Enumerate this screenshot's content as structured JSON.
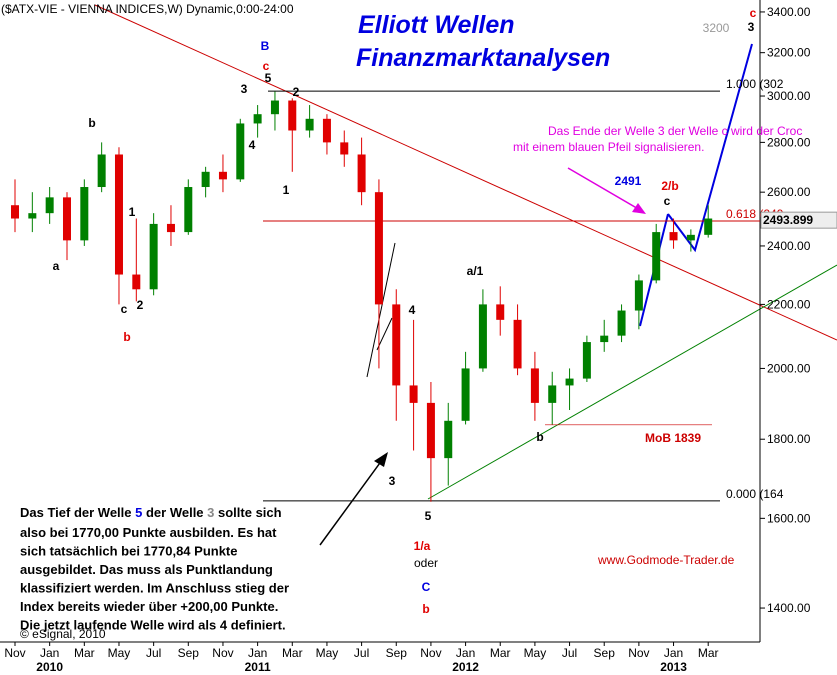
{
  "chart_data": {
    "type": "candlestick",
    "title": "($ATX-VIE - VIENNA INDICES,W) Dynamic,0:00-24:00",
    "heading": [
      "Elliott Wellen",
      "Finanzmarktanalysen"
    ],
    "log_scale": true,
    "up_color": "#008000",
    "down_color": "#e00000",
    "x": [
      "2009-11",
      "2009-12",
      "2010-01",
      "2010-02",
      "2010-03",
      "2010-04",
      "2010-05",
      "2010-06",
      "2010-07",
      "2010-08",
      "2010-09",
      "2010-10",
      "2010-11",
      "2010-12",
      "2011-01",
      "2011-02",
      "2011-03",
      "2011-04",
      "2011-05",
      "2011-06",
      "2011-07",
      "2011-08",
      "2011-09",
      "2011-10",
      "2011-11",
      "2011-12",
      "2012-01",
      "2012-02",
      "2012-03",
      "2012-04",
      "2012-05",
      "2012-06",
      "2012-07",
      "2012-08",
      "2012-09",
      "2012-10",
      "2012-11",
      "2012-12",
      "2013-01",
      "2013-02",
      "2013-03"
    ],
    "open": [
      2550,
      2500,
      2520,
      2580,
      2420,
      2620,
      2750,
      2300,
      2250,
      2480,
      2450,
      2620,
      2680,
      2650,
      2880,
      2920,
      2980,
      2850,
      2900,
      2800,
      2750,
      2600,
      2200,
      1950,
      1900,
      1750,
      1850,
      2000,
      2200,
      2150,
      2000,
      1900,
      1950,
      1970,
      2080,
      2100,
      2180,
      2280,
      2450,
      2420,
      2440
    ],
    "high": [
      2650,
      2600,
      2620,
      2600,
      2650,
      2800,
      2780,
      2500,
      2520,
      2550,
      2650,
      2700,
      2750,
      2900,
      2960,
      3020,
      2990,
      2960,
      2920,
      2850,
      2820,
      2650,
      2250,
      2150,
      1960,
      1900,
      2050,
      2250,
      2260,
      2200,
      2050,
      1990,
      2000,
      2100,
      2150,
      2200,
      2300,
      2480,
      2500,
      2460,
      2550
    ],
    "low": [
      2450,
      2450,
      2480,
      2350,
      2400,
      2600,
      2200,
      2210,
      2230,
      2400,
      2440,
      2580,
      2600,
      2640,
      2820,
      2850,
      2680,
      2820,
      2750,
      2700,
      2550,
      2000,
      1850,
      1770,
      1640,
      1680,
      1840,
      1990,
      2100,
      1980,
      1850,
      1840,
      1880,
      1960,
      2050,
      2080,
      2120,
      2270,
      2390,
      2380,
      2430
    ],
    "close": [
      2500,
      2520,
      2580,
      2420,
      2620,
      2750,
      2300,
      2250,
      2480,
      2450,
      2620,
      2680,
      2650,
      2880,
      2920,
      2980,
      2850,
      2900,
      2800,
      2750,
      2600,
      2200,
      1950,
      1900,
      1750,
      1850,
      2000,
      2200,
      2150,
      2000,
      1900,
      1950,
      1970,
      2080,
      2100,
      2180,
      2280,
      2450,
      2420,
      2440,
      2500
    ],
    "ylim": [
      1331,
      3461
    ],
    "yticks": [
      {
        "value": 1400,
        "label": "1400.00"
      },
      {
        "value": 1600,
        "label": "1600.00"
      },
      {
        "value": 1800,
        "label": "1800.00"
      },
      {
        "value": 2000,
        "label": "2000.00"
      },
      {
        "value": 2200,
        "label": "2200.00"
      },
      {
        "value": 2400,
        "label": "2400.00"
      },
      {
        "value": 2600,
        "label": "2600.00"
      },
      {
        "value": 2800,
        "label": "2800.00"
      },
      {
        "value": 3000,
        "label": "3000.00"
      },
      {
        "value": 3200,
        "label": "3200.00"
      },
      {
        "value": 3400,
        "label": "3400.00"
      }
    ],
    "xticks": [
      {
        "value": "2009-11",
        "label": "Nov"
      },
      {
        "value": "2010-01",
        "label": "Jan"
      },
      {
        "value": "2010-03",
        "label": "Mar"
      },
      {
        "value": "2010-05",
        "label": "May"
      },
      {
        "value": "2010-07",
        "label": "Jul"
      },
      {
        "value": "2010-09",
        "label": "Sep"
      },
      {
        "value": "2010-11",
        "label": "Nov"
      },
      {
        "value": "2011-01",
        "label": "Jan"
      },
      {
        "value": "2011-03",
        "label": "Mar"
      },
      {
        "value": "2011-05",
        "label": "May"
      },
      {
        "value": "2011-07",
        "label": "Jul"
      },
      {
        "value": "2011-09",
        "label": "Sep"
      },
      {
        "value": "2011-11",
        "label": "Nov"
      },
      {
        "value": "2012-01",
        "label": "Jan"
      },
      {
        "value": "2012-03",
        "label": "Mar"
      },
      {
        "value": "2012-05",
        "label": "May"
      },
      {
        "value": "2012-07",
        "label": "Jul"
      },
      {
        "value": "2012-09",
        "label": "Sep"
      },
      {
        "value": "2012-11",
        "label": "Nov"
      },
      {
        "value": "2013-01",
        "label": "Jan"
      },
      {
        "value": "2013-03",
        "label": "Mar"
      }
    ],
    "year_labels": [
      {
        "value": "2010-01",
        "label": "2010"
      },
      {
        "value": "2011-01",
        "label": "2011"
      },
      {
        "value": "2012-01",
        "label": "2012"
      },
      {
        "value": "2013-01",
        "label": "2013"
      }
    ],
    "levels": [
      {
        "value": 3022,
        "label": "1.000 (302",
        "color": "#000000"
      },
      {
        "value": 2491,
        "label": "0.618 (249",
        "color": "#cc0000"
      },
      {
        "value": 1642,
        "label": "0.000 (164",
        "color": "#000000"
      },
      {
        "value": 1839,
        "label": "MoB 1839",
        "color": "#cc0000"
      }
    ],
    "last_price": {
      "value": 2493.899,
      "label": "2493.899"
    },
    "annotations": [
      {
        "text": "B",
        "color": "#0000e0"
      },
      {
        "text": "c",
        "color": "#e00000"
      },
      {
        "text": "5",
        "color": "#000000"
      },
      {
        "text": "3",
        "color": "#000000"
      },
      {
        "text": "2",
        "color": "#000000"
      },
      {
        "text": "4",
        "color": "#000000"
      },
      {
        "text": "1",
        "color": "#000000"
      },
      {
        "text": "b",
        "color": "#000000"
      },
      {
        "text": "a",
        "color": "#000000"
      },
      {
        "text": "1",
        "color": "#000000"
      },
      {
        "text": "c",
        "color": "#000000"
      },
      {
        "text": "2",
        "color": "#000000"
      },
      {
        "text": "b",
        "color": "#e00000"
      },
      {
        "text": "4",
        "color": "#000000"
      },
      {
        "text": "3",
        "color": "#000000"
      },
      {
        "text": "5",
        "color": "#000000"
      },
      {
        "text": "1/a",
        "color": "#e00000"
      },
      {
        "text": "oder",
        "color": "#000000"
      },
      {
        "text": "C",
        "color": "#0000e0"
      },
      {
        "text": "b",
        "color": "#e00000"
      },
      {
        "text": "a/1",
        "color": "#000000"
      },
      {
        "text": "b",
        "color": "#000000"
      },
      {
        "text": "c",
        "color": "#000000"
      },
      {
        "text": "2/b",
        "color": "#e00000"
      },
      {
        "text": "2491",
        "color": "#0000e0"
      },
      {
        "text": "c",
        "color": "#e00000"
      },
      {
        "text": "3",
        "color": "#000000"
      },
      {
        "text": "3200",
        "color": "#999999"
      },
      {
        "text": "Das Ende der Welle 3 der Welle c wird der Croc",
        "color": "#e000e0"
      },
      {
        "text": "mit einem blauen Pfeil signalisieren.",
        "color": "#e000e0"
      },
      {
        "text": "www.Godmode-Trader.de",
        "color": "#cc0000"
      },
      {
        "text": "© eSignal, 2010",
        "color": "#000000"
      }
    ],
    "note": {
      "first_line": [
        "Das Tief der Welle ",
        "5",
        " der Welle ",
        "3",
        " sollte sich"
      ],
      "lines": [
        "also bei 1770,00 Punkte ausbilden. Es hat",
        "sich tatsächlich bei 1770,84 Punkte",
        "ausgebildet. Das muss als Punktlandung",
        "klassifiziert werden. Im Anschluss stieg der",
        "Index bereits wieder über +200,00 Punkte.",
        "Die jetzt laufende Welle wird als 4 definiert."
      ]
    }
  }
}
